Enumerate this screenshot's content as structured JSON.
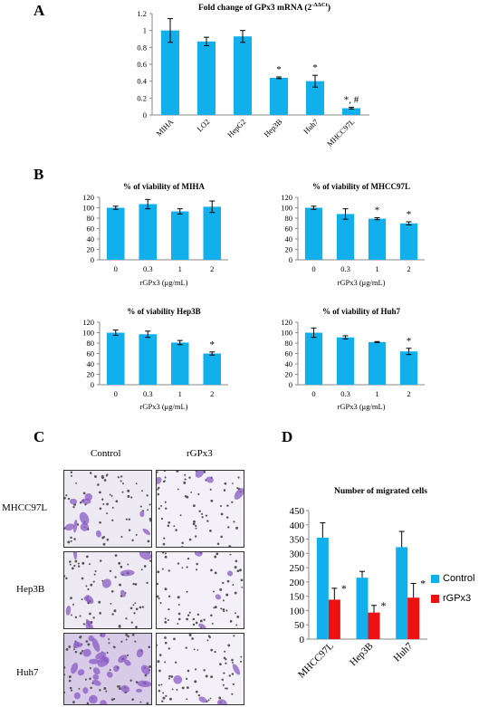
{
  "colors": {
    "blue": "#11b0ec",
    "red": "#ee1111",
    "axis": "#888888"
  },
  "panels": {
    "A": "A",
    "B": "B",
    "C": "C",
    "D": "D"
  },
  "panel_c": {
    "columns": [
      "Control",
      "rGPx3"
    ],
    "rows": [
      "MHCC97L",
      "Hep3B",
      "Huh7"
    ]
  },
  "chart_data": [
    {
      "id": "A",
      "type": "bar",
      "title": "Fold change of GPx3 mRNA (2",
      "title_sup": "-ΔΔCt",
      "title_end": ")",
      "categories": [
        "MIHA",
        "LO2",
        "HepG2",
        "Hep3B",
        "Huh7",
        "MHCC97L"
      ],
      "values": [
        1.0,
        0.87,
        0.93,
        0.44,
        0.4,
        0.08
      ],
      "errors": [
        0.14,
        0.05,
        0.07,
        0.01,
        0.07,
        0.01
      ],
      "annotations": [
        "",
        "",
        "",
        "*",
        "*",
        "*, #"
      ],
      "ylim": [
        0,
        1.2
      ],
      "yticks": [
        "0",
        "0.2",
        "0.4",
        "0.6",
        "0.8",
        "1",
        "1.2"
      ],
      "xlabel": "",
      "ylabel": ""
    },
    {
      "id": "B1",
      "type": "bar",
      "title": "% of viability of MIHA",
      "categories": [
        "0",
        "0.3",
        "1",
        "2"
      ],
      "values": [
        100,
        107,
        93,
        102
      ],
      "errors": [
        3,
        9,
        5,
        11
      ],
      "annotations": [
        "",
        "",
        "",
        ""
      ],
      "ylim": [
        0,
        120
      ],
      "yticks": [
        "0",
        "20",
        "40",
        "60",
        "80",
        "100",
        "120"
      ],
      "xlabel": "rGPx3 (μg/mL)"
    },
    {
      "id": "B2",
      "type": "bar",
      "title": "% of viability of MHCC97L",
      "categories": [
        "0",
        "0.3",
        "1",
        "2"
      ],
      "values": [
        100,
        88,
        79,
        70
      ],
      "errors": [
        3,
        10,
        2,
        3
      ],
      "annotations": [
        "",
        "",
        "*",
        "*"
      ],
      "ylim": [
        0,
        120
      ],
      "yticks": [
        "0",
        "20",
        "40",
        "60",
        "80",
        "100",
        "120"
      ],
      "xlabel": "rGPx3 (μg/mL)"
    },
    {
      "id": "B3",
      "type": "bar",
      "title": "% of viability Hep3B",
      "categories": [
        "0",
        "0.3",
        "1",
        "2"
      ],
      "values": [
        100,
        97,
        81,
        60
      ],
      "errors": [
        5,
        6,
        4,
        3
      ],
      "annotations": [
        "",
        "",
        "",
        "*"
      ],
      "ylim": [
        0,
        120
      ],
      "yticks": [
        "0",
        "20",
        "40",
        "60",
        "80",
        "100",
        "120"
      ],
      "xlabel": "rGPx3 (μg/mL)"
    },
    {
      "id": "B4",
      "type": "bar",
      "title": "% of viability of Huh7",
      "categories": [
        "0",
        "0.3",
        "1",
        "2"
      ],
      "values": [
        100,
        91,
        82,
        64
      ],
      "errors": [
        9,
        3,
        1,
        6
      ],
      "annotations": [
        "",
        "",
        "",
        "*"
      ],
      "ylim": [
        0,
        120
      ],
      "yticks": [
        "0",
        "20",
        "40",
        "60",
        "80",
        "100",
        "120"
      ],
      "xlabel": "rGPx3 (μg/mL)"
    },
    {
      "id": "D",
      "type": "bar",
      "title": "Number of migrated cells",
      "categories": [
        "MHCC97L",
        "Hep3B",
        "Huh7"
      ],
      "series": [
        {
          "name": "Control",
          "values": [
            355,
            215,
            322
          ],
          "errors": [
            52,
            22,
            55
          ]
        },
        {
          "name": "rGPx3",
          "values": [
            138,
            93,
            145
          ],
          "errors": [
            40,
            25,
            50
          ]
        }
      ],
      "annotations": [
        "*",
        "*",
        "*"
      ],
      "ylim": [
        0,
        450
      ],
      "yticks": [
        "0",
        "50",
        "100",
        "150",
        "200",
        "250",
        "300",
        "350",
        "400",
        "450"
      ],
      "legend": "right"
    }
  ]
}
